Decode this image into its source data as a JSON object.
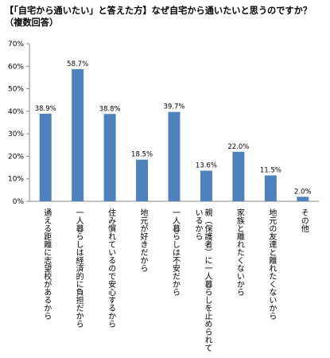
{
  "header": {
    "title_line1": "【「自宅から通いたい」と答えた方】なぜ自宅から通いたいと思うのですか？",
    "title_line2": "（複数回答）"
  },
  "chart_data": {
    "type": "bar",
    "title": "【「自宅から通いたい」と答えた方】なぜ自宅から通いたいと思うのですか？（複数回答）",
    "categories": [
      "通える距離に志望校があるから",
      "一人暮らしは経済的に負担だから",
      "住み慣れているので安心するから",
      "地元が好きだから",
      "一人暮らしは不安だから",
      "親（保護者）に一人暮らしを止められているから",
      "家族と離れたくないから",
      "地元の友達と離れたくないから",
      "その他"
    ],
    "category_lines": [
      [
        "通える距離に志望校があるから"
      ],
      [
        "一人暮らしは経済的に負担だから"
      ],
      [
        "住み慣れているので安心するから"
      ],
      [
        "地元が好きだから"
      ],
      [
        "一人暮らしは不安だから"
      ],
      [
        "親（保護者）に一人暮らしを止められて",
        "いるから"
      ],
      [
        "家族と離れたくないから"
      ],
      [
        "地元の友達と離れたくないから"
      ],
      [
        "その他"
      ]
    ],
    "values": [
      38.9,
      58.7,
      38.8,
      18.5,
      39.7,
      13.6,
      22.0,
      11.5,
      2.0
    ],
    "data_labels": [
      "38.9%",
      "58.7%",
      "38.8%",
      "18.5%",
      "39.7%",
      "13.6%",
      "22.0%",
      "11.5%",
      "2.0%"
    ],
    "ylim": [
      0,
      70
    ],
    "y_ticks": [
      0,
      10,
      20,
      30,
      40,
      50,
      60,
      70
    ],
    "y_tick_labels": [
      "0%",
      "10%",
      "20%",
      "30%",
      "40%",
      "50%",
      "60%",
      "70%"
    ],
    "xlabel": "",
    "ylabel": "",
    "grid": false,
    "bar_color": "#4f81bd"
  }
}
